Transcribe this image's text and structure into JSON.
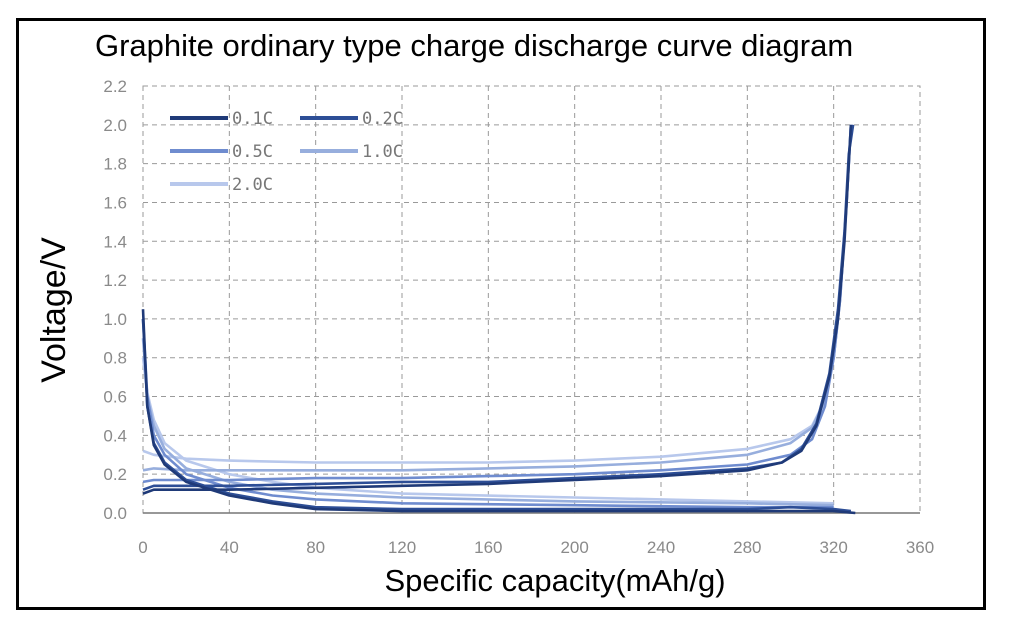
{
  "chart_data": {
    "type": "line",
    "title": "Graphite ordinary type charge discharge curve diagram",
    "xlabel": "Specific capacity(mAh/g)",
    "ylabel": "Voltage/V",
    "xlim": [
      0,
      360
    ],
    "ylim": [
      0,
      2.2
    ],
    "x_ticks": [
      "0",
      "40",
      "80",
      "120",
      "160",
      "200",
      "240",
      "280",
      "320",
      "360"
    ],
    "y_ticks": [
      "0.0",
      "0.2",
      "0.4",
      "0.6",
      "0.8",
      "1.0",
      "1.2",
      "1.4",
      "1.6",
      "1.8",
      "2.0",
      "2.2"
    ],
    "grid": true,
    "legend_position": "top-left",
    "series": [
      {
        "name": "0.1C",
        "color": "#1f3a78",
        "discharge": [
          [
            0,
            1.05
          ],
          [
            2,
            0.55
          ],
          [
            5,
            0.35
          ],
          [
            10,
            0.25
          ],
          [
            20,
            0.16
          ],
          [
            40,
            0.09
          ],
          [
            60,
            0.05
          ],
          [
            80,
            0.02
          ],
          [
            120,
            0.01
          ],
          [
            200,
            0.01
          ],
          [
            280,
            0.01
          ],
          [
            320,
            0.01
          ],
          [
            330,
            0.0
          ]
        ],
        "charge": [
          [
            0,
            0.1
          ],
          [
            5,
            0.12
          ],
          [
            20,
            0.12
          ],
          [
            40,
            0.12
          ],
          [
            80,
            0.13
          ],
          [
            120,
            0.14
          ],
          [
            160,
            0.15
          ],
          [
            200,
            0.17
          ],
          [
            240,
            0.19
          ],
          [
            280,
            0.22
          ],
          [
            296,
            0.26
          ],
          [
            305,
            0.32
          ],
          [
            312,
            0.45
          ],
          [
            318,
            0.7
          ],
          [
            322,
            1.0
          ],
          [
            325,
            1.4
          ],
          [
            327,
            1.8
          ],
          [
            328,
            2.0
          ]
        ]
      },
      {
        "name": "0.2C",
        "color": "#2d4e96",
        "discharge": [
          [
            0,
            1.0
          ],
          [
            2,
            0.55
          ],
          [
            5,
            0.36
          ],
          [
            10,
            0.26
          ],
          [
            20,
            0.17
          ],
          [
            40,
            0.1
          ],
          [
            60,
            0.06
          ],
          [
            80,
            0.03
          ],
          [
            120,
            0.02
          ],
          [
            200,
            0.02
          ],
          [
            280,
            0.02
          ],
          [
            300,
            0.03
          ],
          [
            320,
            0.02
          ],
          [
            328,
            0.01
          ]
        ],
        "charge": [
          [
            0,
            0.12
          ],
          [
            5,
            0.14
          ],
          [
            20,
            0.14
          ],
          [
            40,
            0.14
          ],
          [
            80,
            0.15
          ],
          [
            120,
            0.16
          ],
          [
            160,
            0.16
          ],
          [
            200,
            0.18
          ],
          [
            240,
            0.2
          ],
          [
            280,
            0.23
          ],
          [
            296,
            0.26
          ],
          [
            305,
            0.33
          ],
          [
            312,
            0.46
          ],
          [
            318,
            0.72
          ],
          [
            322,
            1.05
          ],
          [
            325,
            1.45
          ],
          [
            327,
            1.85
          ],
          [
            329,
            2.0
          ]
        ]
      },
      {
        "name": "0.5C",
        "color": "#6f8ccf",
        "discharge": [
          [
            0,
            1.0
          ],
          [
            2,
            0.6
          ],
          [
            5,
            0.4
          ],
          [
            10,
            0.3
          ],
          [
            20,
            0.2
          ],
          [
            40,
            0.13
          ],
          [
            60,
            0.09
          ],
          [
            80,
            0.07
          ],
          [
            120,
            0.05
          ],
          [
            200,
            0.04
          ],
          [
            280,
            0.03
          ],
          [
            320,
            0.03
          ]
        ],
        "charge": [
          [
            0,
            0.16
          ],
          [
            5,
            0.17
          ],
          [
            20,
            0.17
          ],
          [
            40,
            0.17
          ],
          [
            80,
            0.18
          ],
          [
            120,
            0.18
          ],
          [
            160,
            0.19
          ],
          [
            200,
            0.2
          ],
          [
            240,
            0.22
          ],
          [
            280,
            0.25
          ],
          [
            300,
            0.3
          ],
          [
            310,
            0.38
          ],
          [
            316,
            0.55
          ],
          [
            320,
            0.8
          ],
          [
            323,
            1.1
          ],
          [
            326,
            1.6
          ],
          [
            328,
            2.0
          ]
        ]
      },
      {
        "name": "1.0C",
        "color": "#97aedd",
        "discharge": [
          [
            0,
            0.9
          ],
          [
            2,
            0.6
          ],
          [
            5,
            0.45
          ],
          [
            10,
            0.33
          ],
          [
            20,
            0.23
          ],
          [
            40,
            0.16
          ],
          [
            60,
            0.12
          ],
          [
            80,
            0.1
          ],
          [
            120,
            0.08
          ],
          [
            200,
            0.06
          ],
          [
            280,
            0.05
          ],
          [
            320,
            0.04
          ]
        ],
        "charge": [
          [
            0,
            0.22
          ],
          [
            5,
            0.23
          ],
          [
            20,
            0.22
          ],
          [
            40,
            0.22
          ],
          [
            80,
            0.22
          ],
          [
            120,
            0.22
          ],
          [
            160,
            0.23
          ],
          [
            200,
            0.24
          ],
          [
            240,
            0.26
          ],
          [
            280,
            0.3
          ],
          [
            300,
            0.36
          ],
          [
            310,
            0.44
          ],
          [
            316,
            0.58
          ],
          [
            320,
            0.8
          ],
          [
            323,
            1.1
          ],
          [
            326,
            1.6
          ],
          [
            328,
            2.0
          ]
        ]
      },
      {
        "name": "2.0C",
        "color": "#b8c8ec",
        "discharge": [
          [
            0,
            0.8
          ],
          [
            2,
            0.62
          ],
          [
            5,
            0.48
          ],
          [
            10,
            0.36
          ],
          [
            20,
            0.27
          ],
          [
            40,
            0.2
          ],
          [
            60,
            0.16
          ],
          [
            80,
            0.13
          ],
          [
            120,
            0.1
          ],
          [
            200,
            0.08
          ],
          [
            280,
            0.06
          ],
          [
            320,
            0.05
          ]
        ],
        "charge": [
          [
            0,
            0.32
          ],
          [
            5,
            0.3
          ],
          [
            20,
            0.28
          ],
          [
            40,
            0.27
          ],
          [
            80,
            0.26
          ],
          [
            120,
            0.26
          ],
          [
            160,
            0.26
          ],
          [
            200,
            0.27
          ],
          [
            240,
            0.29
          ],
          [
            280,
            0.33
          ],
          [
            300,
            0.38
          ],
          [
            310,
            0.45
          ],
          [
            316,
            0.58
          ],
          [
            320,
            0.8
          ],
          [
            323,
            1.1
          ],
          [
            326,
            1.6
          ],
          [
            328,
            2.0
          ]
        ]
      }
    ]
  }
}
